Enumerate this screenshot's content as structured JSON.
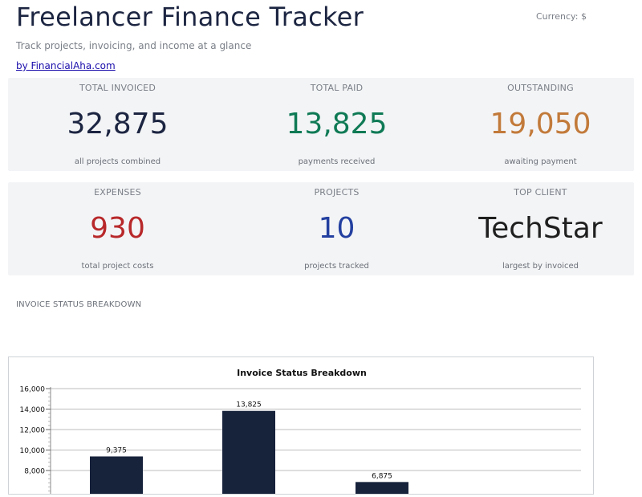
{
  "header": {
    "title": "Freelancer Finance Tracker",
    "currency": "Currency: $",
    "subtitle": "Track projects, invoicing, and income at a glance",
    "byline": "by FinancialAha.com"
  },
  "metrics_row1": [
    {
      "label": "TOTAL INVOICED",
      "value": "32,875",
      "note": "all projects combined",
      "color": "#1c2541"
    },
    {
      "label": "TOTAL PAID",
      "value": "13,825",
      "note": "payments received",
      "color": "#0f7a55"
    },
    {
      "label": "OUTSTANDING",
      "value": "19,050",
      "note": "awaiting payment",
      "color": "#c27a3a"
    }
  ],
  "metrics_row2": [
    {
      "label": "EXPENSES",
      "value": "930",
      "note": "total project costs",
      "color": "#b8282a"
    },
    {
      "label": "PROJECTS",
      "value": "10",
      "note": "projects tracked",
      "color": "#2340a0"
    },
    {
      "label": "TOP CLIENT",
      "value": "TechStar",
      "note": "largest by invoiced",
      "color": "#1f1f1f"
    }
  ],
  "section": {
    "label": "INVOICE STATUS BREAKDOWN"
  },
  "chart_data": {
    "type": "bar",
    "title": "Invoice Status Breakdown",
    "categories": [
      "",
      "",
      ""
    ],
    "values": [
      9375,
      13825,
      6875
    ],
    "value_labels": [
      "9,375",
      "13,825",
      "6,875"
    ],
    "ylim": [
      0,
      16000
    ],
    "yticks": [
      "8,000",
      "10,000",
      "12,000",
      "14,000",
      "16,000"
    ],
    "ytick_values": [
      8000,
      10000,
      12000,
      14000,
      16000
    ],
    "grid": true,
    "bar_color": "#17223b",
    "xlabel": "",
    "ylabel": ""
  }
}
